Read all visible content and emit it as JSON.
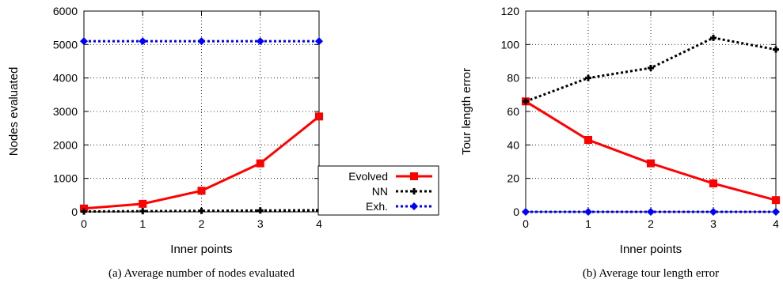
{
  "chart_data": [
    {
      "type": "line",
      "caption": "(a) Average number of nodes evaluated",
      "xlabel": "Inner points",
      "ylabel": "Nodes evaluated",
      "x": [
        0,
        1,
        2,
        3,
        4
      ],
      "xlim": [
        0,
        4
      ],
      "ylim": [
        0,
        6000
      ],
      "yticks": [
        0,
        1000,
        2000,
        3000,
        4000,
        5000,
        6000
      ],
      "grid": true,
      "legend_position": "bottom-right",
      "series": [
        {
          "name": "Evolved",
          "values": [
            100,
            240,
            630,
            1450,
            2850
          ],
          "color": "#ff0000",
          "style": "solid",
          "marker": "square"
        },
        {
          "name": "NN",
          "values": [
            10,
            20,
            30,
            40,
            50
          ],
          "color": "#000000",
          "style": "dotted",
          "marker": "cross"
        },
        {
          "name": "Exh.",
          "values": [
            5100,
            5100,
            5100,
            5100,
            5100
          ],
          "color": "#0000ff",
          "style": "dotted",
          "marker": "diamond"
        }
      ]
    },
    {
      "type": "line",
      "caption": "(b) Average tour length error",
      "xlabel": "Inner points",
      "ylabel": "Tour length error",
      "x": [
        0,
        1,
        2,
        3,
        4
      ],
      "xlim": [
        0,
        4
      ],
      "ylim": [
        0,
        120
      ],
      "yticks": [
        0,
        20,
        40,
        60,
        80,
        100,
        120
      ],
      "grid": true,
      "series": [
        {
          "name": "Evolved",
          "values": [
            66,
            43,
            29,
            17,
            7
          ],
          "color": "#ff0000",
          "style": "solid",
          "marker": "square"
        },
        {
          "name": "NN",
          "values": [
            66,
            80,
            86,
            104,
            97
          ],
          "color": "#000000",
          "style": "dotted",
          "marker": "cross"
        },
        {
          "name": "Exh.",
          "values": [
            0,
            0,
            0,
            0,
            0
          ],
          "color": "#0000ff",
          "style": "dotted",
          "marker": "diamond"
        }
      ]
    }
  ]
}
